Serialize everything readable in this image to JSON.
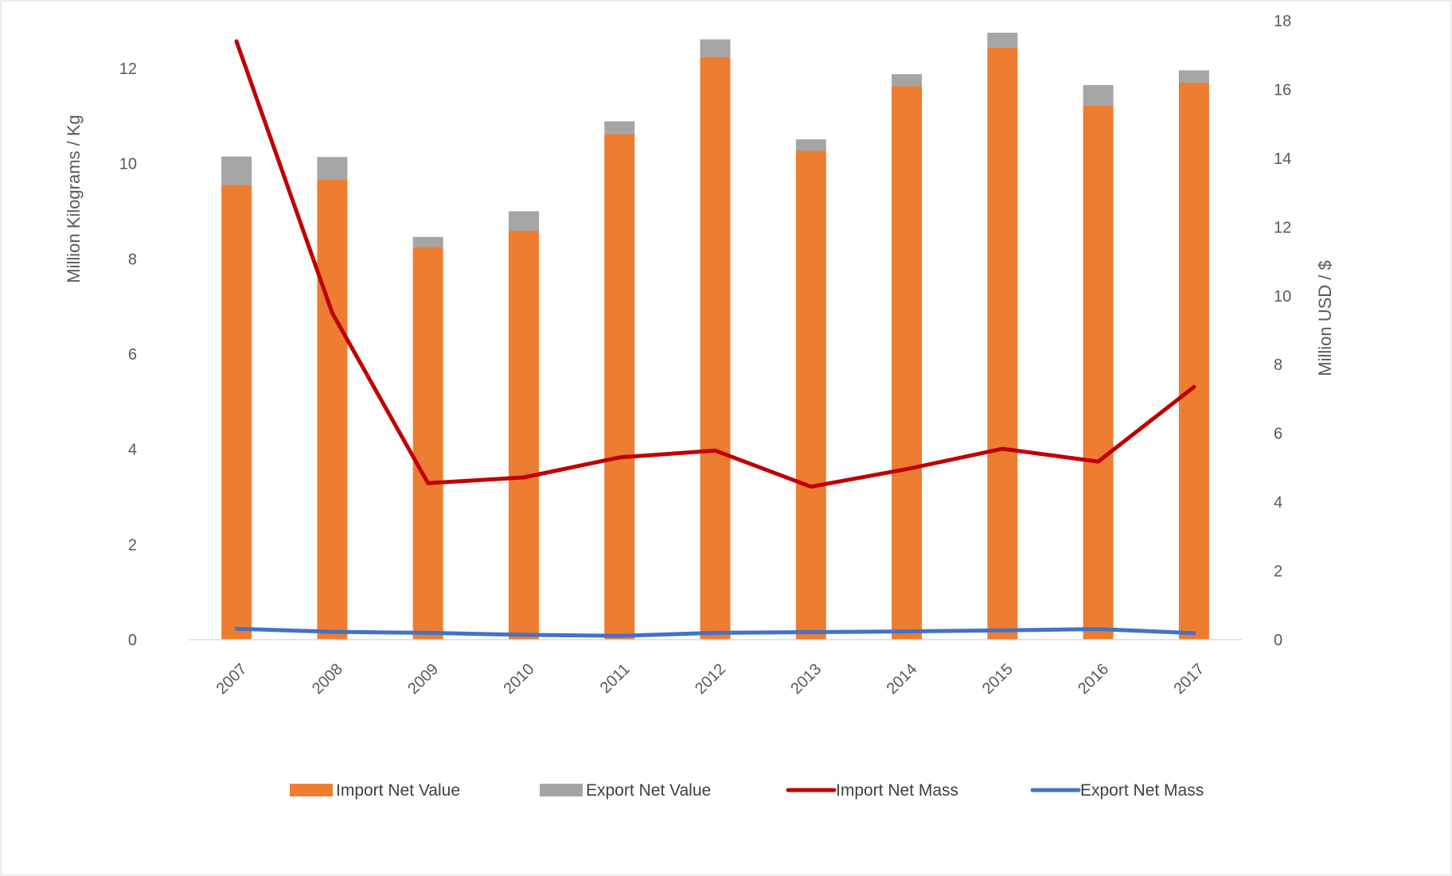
{
  "chart_data": {
    "type": "bar",
    "categories": [
      "2007",
      "2008",
      "2009",
      "2010",
      "2011",
      "2012",
      "2013",
      "2014",
      "2015",
      "2016",
      "2017"
    ],
    "ylabel": "Million Kilograms / Kg",
    "y2label": "Million USD / $",
    "ylim": [
      0,
      13
    ],
    "y2lim": [
      0,
      18
    ],
    "yticks": [
      "0",
      "2",
      "4",
      "6",
      "8",
      "10",
      "12"
    ],
    "y2ticks": [
      "0",
      "2",
      "4",
      "6",
      "8",
      "10",
      "12",
      "14",
      "16",
      "18"
    ],
    "series": [
      {
        "name": "Import Net Value",
        "kind": "bar",
        "axis": "left",
        "stack": "value",
        "color": "#ED7D31",
        "values": [
          9.55,
          9.67,
          8.25,
          8.59,
          10.62,
          12.24,
          10.27,
          11.63,
          12.44,
          11.22,
          11.7
        ]
      },
      {
        "name": "Export Net Value",
        "kind": "bar",
        "axis": "left",
        "stack": "value",
        "color": "#A5A5A5",
        "values": [
          0.6,
          0.47,
          0.21,
          0.41,
          0.27,
          0.37,
          0.24,
          0.25,
          0.31,
          0.43,
          0.26
        ]
      },
      {
        "name": "Import Net Mass",
        "kind": "line",
        "axis": "right",
        "color": "#C00000",
        "values": [
          17.4,
          9.5,
          4.55,
          4.72,
          5.3,
          5.5,
          4.45,
          4.96,
          5.55,
          5.18,
          7.35
        ]
      },
      {
        "name": "Export Net Mass",
        "kind": "line",
        "axis": "right",
        "color": "#4472C4",
        "values": [
          0.32,
          0.23,
          0.2,
          0.14,
          0.11,
          0.2,
          0.22,
          0.24,
          0.27,
          0.31,
          0.19
        ]
      }
    ],
    "legend": "bottom",
    "grid": false
  }
}
